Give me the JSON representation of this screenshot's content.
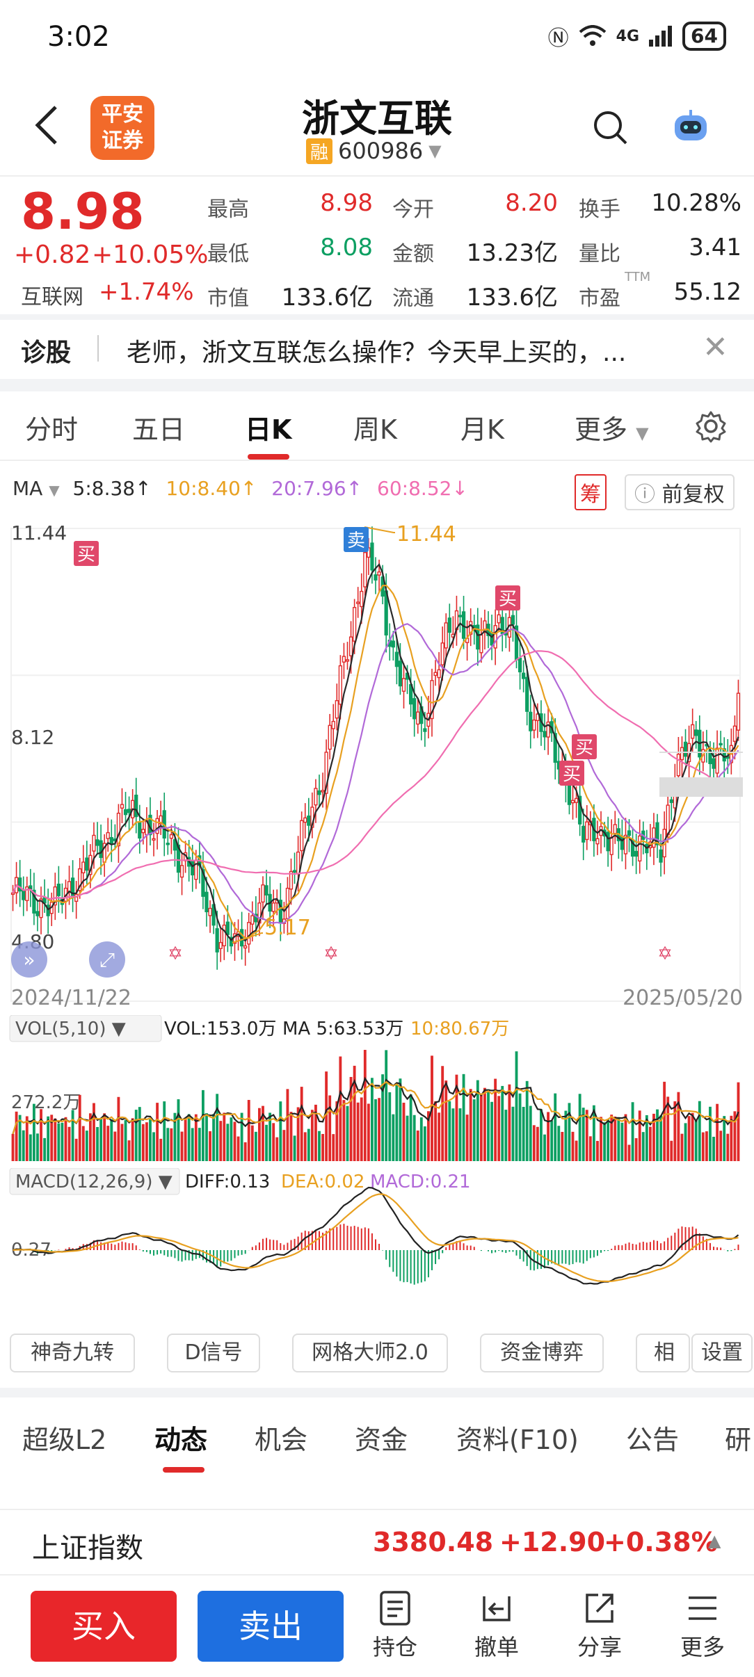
{
  "status": {
    "time": "3:02",
    "network": "4G",
    "battery": "64"
  },
  "header": {
    "logo_text_1": "平安",
    "logo_text_2": "证券",
    "name": "浙文互联",
    "rong_badge": "融",
    "code": "600986"
  },
  "quote": {
    "price": "8.98",
    "change": "+0.82",
    "change_pct": "+10.05%",
    "sector_label": "互联网",
    "sector_change": "+1.74%",
    "cells": [
      {
        "label": "最高",
        "value": "8.98"
      },
      {
        "label": "今开",
        "value": "8.20"
      },
      {
        "label": "换手",
        "value": "10.28%"
      },
      {
        "label": "最低",
        "value": "8.08"
      },
      {
        "label": "金额",
        "value": "13.23亿"
      },
      {
        "label": "量比",
        "value": "3.41"
      },
      {
        "label": "市值",
        "value": "133.6亿"
      },
      {
        "label": "流通",
        "value": "133.6亿"
      },
      {
        "label": "市盈",
        "value": "55.12"
      }
    ],
    "pe_sup": "TTM"
  },
  "diagnose": {
    "title": "诊股",
    "question": "老师，浙文互联怎么操作？今天早上买的，...",
    "close": "✕"
  },
  "period_tabs": [
    "分时",
    "五日",
    "日K",
    "周K",
    "月K",
    "更多"
  ],
  "ma": {
    "label": "MA",
    "items": [
      {
        "text": "5:8.38↑",
        "color": "#2a2a2a"
      },
      {
        "text": "10:8.40↑",
        "color": "#e8a020"
      },
      {
        "text": "20:7.96↑",
        "color": "#b169d8"
      },
      {
        "text": "60:8.52↓",
        "color": "#f06db0"
      }
    ],
    "chou": "筹",
    "fuquan": "前复权"
  },
  "kline": {
    "y_top": "11.44",
    "y_mid": "8.12",
    "y_bot": "4.80",
    "max_label": "11.44",
    "min_label": "5.17",
    "date_start": "2024/11/22",
    "date_end": "2025/05/20",
    "markers": [
      {
        "text": "买",
        "type": "buy"
      },
      {
        "text": "卖",
        "type": "sell"
      },
      {
        "text": "买",
        "type": "buy"
      },
      {
        "text": "买",
        "type": "buy"
      },
      {
        "text": "买",
        "type": "buy"
      }
    ]
  },
  "vol": {
    "selector": "VOL(5,10)",
    "v": "VOL:153.0万",
    "ma5": "MA 5:63.53万",
    "ma10": "10:80.67万",
    "y_label": "272.2万"
  },
  "macd": {
    "selector": "MACD(12,26,9)",
    "diff": "DIFF:0.13",
    "dea": "DEA:0.02",
    "macd": "MACD:0.21",
    "y_label": "0.27"
  },
  "tools": [
    "神奇九转",
    "D信号",
    "网格大师2.0",
    "资金博弈",
    "相似",
    "设置"
  ],
  "bottom_tabs": [
    "超级L2",
    "动态",
    "机会",
    "资金",
    "资料(F10)",
    "公告",
    "研"
  ],
  "index": {
    "name": "上证指数",
    "value": "3380.48",
    "change": "+12.90",
    "pct": "+0.38%"
  },
  "actions": {
    "buy": "买入",
    "sell": "卖出",
    "items": [
      "持仓",
      "撤单",
      "分享",
      "更多"
    ]
  },
  "colors": {
    "up": "#e02a2a",
    "down": "#0d9f62",
    "ma5": "#2a2a2a",
    "ma10": "#e8a020",
    "ma20": "#b169d8",
    "ma60": "#f06db0"
  }
}
